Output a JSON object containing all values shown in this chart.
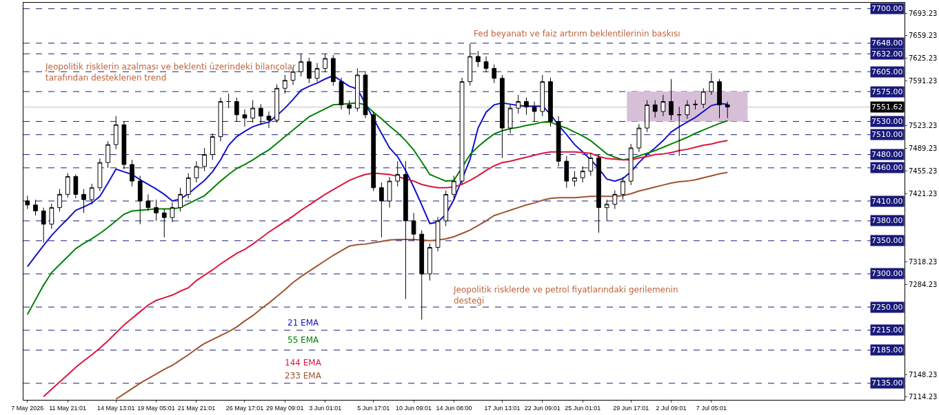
{
  "chart_data": {
    "type": "candlestick",
    "categories": [
      "7 May 2026",
      null,
      null,
      null,
      null,
      "11 May 21:01",
      null,
      null,
      null,
      null,
      null,
      "14 May 13:01",
      null,
      null,
      null,
      null,
      "19 May 05:01",
      null,
      null,
      null,
      null,
      "21 May 21:01",
      null,
      null,
      null,
      null,
      null,
      "26 May 17:01",
      null,
      null,
      null,
      null,
      "29 May 09:01",
      null,
      null,
      null,
      null,
      "3 Jun 01:01",
      null,
      null,
      null,
      null,
      null,
      "5 Jun 17:01",
      null,
      null,
      null,
      null,
      "10 Jun 09:01",
      null,
      null,
      null,
      null,
      "14 Jun 08:00",
      null,
      null,
      null,
      null,
      null,
      "17 Jun 13:01",
      null,
      null,
      null,
      null,
      "22 Jun 09:01",
      null,
      null,
      null,
      null,
      "25 Jun 01:01",
      null,
      null,
      null,
      null,
      null,
      "29 Jun 17:01",
      null,
      null,
      null,
      null,
      "2 Jul 09:01",
      null,
      null,
      null,
      null,
      "7 Jul 05:01",
      null,
      null
    ],
    "ohlc": [
      [
        7410,
        7418,
        7398,
        7404
      ],
      [
        7404,
        7412,
        7388,
        7395
      ],
      [
        7395,
        7400,
        7347,
        7375
      ],
      [
        7375,
        7406,
        7368,
        7400
      ],
      [
        7400,
        7428,
        7394,
        7420
      ],
      [
        7420,
        7452,
        7415,
        7447
      ],
      [
        7447,
        7450,
        7414,
        7420
      ],
      [
        7420,
        7428,
        7392,
        7412
      ],
      [
        7412,
        7436,
        7405,
        7430
      ],
      [
        7430,
        7474,
        7425,
        7468
      ],
      [
        7468,
        7500,
        7460,
        7495
      ],
      [
        7495,
        7538,
        7488,
        7525
      ],
      [
        7525,
        7530,
        7458,
        7465
      ],
      [
        7465,
        7472,
        7432,
        7440
      ],
      [
        7440,
        7448,
        7375,
        7410
      ],
      [
        7410,
        7420,
        7395,
        7400
      ],
      [
        7400,
        7412,
        7380,
        7392
      ],
      [
        7392,
        7398,
        7355,
        7385
      ],
      [
        7385,
        7408,
        7378,
        7400
      ],
      [
        7400,
        7430,
        7394,
        7420
      ],
      [
        7420,
        7452,
        7414,
        7445
      ],
      [
        7445,
        7470,
        7438,
        7462
      ],
      [
        7462,
        7490,
        7455,
        7480
      ],
      [
        7480,
        7512,
        7472,
        7507
      ],
      [
        7507,
        7566,
        7500,
        7560
      ],
      [
        7560,
        7572,
        7550,
        7560
      ],
      [
        7560,
        7566,
        7530,
        7540
      ],
      [
        7540,
        7548,
        7522,
        7535
      ],
      [
        7535,
        7562,
        7528,
        7550
      ],
      [
        7550,
        7556,
        7525,
        7538
      ],
      [
        7538,
        7545,
        7520,
        7532
      ],
      [
        7532,
        7586,
        7528,
        7580
      ],
      [
        7580,
        7600,
        7572,
        7592
      ],
      [
        7592,
        7612,
        7585,
        7605
      ],
      [
        7605,
        7632,
        7598,
        7620
      ],
      [
        7620,
        7626,
        7588,
        7595
      ],
      [
        7595,
        7618,
        7590,
        7610
      ],
      [
        7610,
        7632,
        7604,
        7625
      ],
      [
        7625,
        7630,
        7584,
        7590
      ],
      [
        7590,
        7596,
        7548,
        7555
      ],
      [
        7555,
        7562,
        7540,
        7550
      ],
      [
        7550,
        7610,
        7545,
        7600
      ],
      [
        7600,
        7606,
        7535,
        7540
      ],
      [
        7540,
        7545,
        7425,
        7430
      ],
      [
        7430,
        7438,
        7355,
        7410
      ],
      [
        7410,
        7446,
        7400,
        7440
      ],
      [
        7440,
        7470,
        7432,
        7450
      ],
      [
        7450,
        7470,
        7262,
        7380
      ],
      [
        7380,
        7392,
        7350,
        7360
      ],
      [
        7360,
        7366,
        7231,
        7300
      ],
      [
        7300,
        7346,
        7290,
        7340
      ],
      [
        7340,
        7386,
        7334,
        7380
      ],
      [
        7380,
        7426,
        7372,
        7420
      ],
      [
        7420,
        7448,
        7412,
        7440
      ],
      [
        7440,
        7596,
        7435,
        7590
      ],
      [
        7590,
        7647,
        7584,
        7628
      ],
      [
        7628,
        7636,
        7612,
        7620
      ],
      [
        7620,
        7628,
        7604,
        7610
      ],
      [
        7610,
        7616,
        7588,
        7595
      ],
      [
        7595,
        7600,
        7475,
        7520
      ],
      [
        7520,
        7556,
        7512,
        7550
      ],
      [
        7550,
        7570,
        7542,
        7560
      ],
      [
        7560,
        7566,
        7540,
        7552
      ],
      [
        7552,
        7560,
        7530,
        7545
      ],
      [
        7545,
        7600,
        7538,
        7590
      ],
      [
        7590,
        7596,
        7522,
        7530
      ],
      [
        7530,
        7538,
        7462,
        7470
      ],
      [
        7470,
        7478,
        7430,
        7440
      ],
      [
        7440,
        7455,
        7432,
        7445
      ],
      [
        7445,
        7462,
        7438,
        7455
      ],
      [
        7455,
        7482,
        7448,
        7475
      ],
      [
        7475,
        7480,
        7362,
        7400
      ],
      [
        7400,
        7412,
        7380,
        7405
      ],
      [
        7405,
        7426,
        7398,
        7420
      ],
      [
        7420,
        7446,
        7412,
        7440
      ],
      [
        7440,
        7496,
        7434,
        7490
      ],
      [
        7490,
        7526,
        7484,
        7520
      ],
      [
        7520,
        7562,
        7514,
        7555
      ],
      [
        7555,
        7562,
        7536,
        7545
      ],
      [
        7545,
        7570,
        7538,
        7560
      ],
      [
        7560,
        7594,
        7532,
        7540
      ],
      [
        7540,
        7552,
        7478,
        7540
      ],
      [
        7540,
        7562,
        7534,
        7555
      ],
      [
        7555,
        7562,
        7548,
        7556
      ],
      [
        7556,
        7580,
        7550,
        7575
      ],
      [
        7575,
        7603,
        7570,
        7590
      ],
      [
        7590,
        7594,
        7535,
        7555
      ],
      [
        7555,
        7560,
        7535,
        7551.62
      ]
    ],
    "series": [
      {
        "type": "line",
        "name": "21 EMA",
        "color": "#1010d0",
        "values": [
          7311,
          7327,
          7343,
          7358,
          7371,
          7383,
          7396,
          7401,
          7407,
          7417,
          7437,
          7458,
          7454,
          7450,
          7442,
          7435,
          7428,
          7420,
          7410,
          7413,
          7421,
          7431,
          7441,
          7454,
          7472,
          7494,
          7507,
          7515,
          7522,
          7526,
          7529,
          7539,
          7550,
          7563,
          7577,
          7583,
          7588,
          7594,
          7599,
          7591,
          7583,
          7579,
          null,
          null,
          7512,
          7490,
          7477,
          7456,
          7431,
          7404,
          7376,
          7378,
          7390,
          7412,
          null,
          7473,
          7520,
          7544,
          7555,
          7558,
          7556,
          7554,
          7553,
          7553,
          7553,
          7541,
          7524,
          7510,
          7495,
          7484,
          7472,
          7459,
          7443,
          7440,
          7444,
          7454,
          7468,
          7480,
          7490,
          7501,
          7514,
          7522,
          7529,
          7536,
          7545,
          7554,
          7557,
          7556
        ]
      },
      {
        "type": "line",
        "name": "55 EMA",
        "color": "#008000",
        "values": [
          7239,
          7261,
          7283,
          7302,
          7314,
          7326,
          7338,
          7346,
          7353,
          7361,
          7370,
          7380,
          7390,
          7395,
          7396,
          7397,
          7398,
          7398,
          7398,
          7400,
          7406,
          7412,
          7418,
          7429,
          7440,
          7450,
          7459,
          7465,
          7472,
          7480,
          7487,
          7497,
          7507,
          7517,
          7527,
          7537,
          7543,
          7549,
          7555,
          7556,
          7557,
          7558,
          7555,
          7544,
          7534,
          7523,
          7513,
          7501,
          7487,
          7469,
          7450,
          7445,
          7440,
          7441,
          null,
          7480,
          7492,
          7502,
          7511,
          7516,
          7519,
          7521,
          7524,
          7526,
          7529,
          7529,
          7524,
          7520,
          7514,
          7508,
          7501,
          7491,
          7481,
          7476,
          7472,
          7474,
          7478,
          7482,
          7486,
          7491,
          7496,
          7501,
          7506,
          7512,
          7517,
          7522,
          7527,
          7531
        ]
      },
      {
        "type": "line",
        "name": "144 EMA",
        "color": "#dc143c",
        "values": [
          null,
          null,
          7115,
          7126,
          7137,
          7148,
          7159,
          7169,
          7178,
          7188,
          7199,
          7211,
          7223,
          7233,
          7243,
          7253,
          7260,
          7264,
          7268,
          7274,
          7279,
          7290,
          7298,
          7306,
          7315,
          7323,
          7331,
          7337,
          7345,
          7354,
          7363,
          7371,
          7379,
          7387,
          7396,
          7404,
          7412,
          7420,
          7427,
          7434,
          7441,
          7446,
          7450,
          7452,
          7451,
          7450,
          7447,
          7443,
          7440,
          7435,
          7432,
          7430,
          7430,
          7431,
          7435,
          7441,
          7448,
          7456,
          7463,
          7468,
          7470,
          7473,
          7476,
          7479,
          7482,
          7484,
          7484,
          7484,
          7484,
          7483,
          7482,
          7477,
          7474,
          7473,
          7472,
          7472,
          7475,
          7477,
          7480,
          7481,
          7483,
          7486,
          7488,
          7491,
          7494,
          7496,
          7499,
          7501
        ]
      },
      {
        "type": "line",
        "name": "233 EMA",
        "color": "#a0522d",
        "values": [
          null,
          null,
          null,
          null,
          null,
          null,
          null,
          null,
          null,
          null,
          null,
          7111,
          7119,
          7127,
          7135,
          7142,
          7149,
          7156,
          7162,
          7170,
          7178,
          7187,
          7195,
          7201,
          7207,
          7213,
          7220,
          7229,
          7237,
          7247,
          7256,
          7266,
          7276,
          7287,
          7296,
          7304,
          7312,
          7320,
          7328,
          7335,
          7342,
          7344,
          7345,
          7347,
          7349,
          7351,
          7352,
          7352,
          7352,
          7351,
          7350,
          7351,
          7353,
          7356,
          7361,
          7366,
          7373,
          7380,
          7388,
          7392,
          7396,
          7400,
          7404,
          7407,
          7411,
          7414,
          7415,
          7415,
          7415,
          7416,
          7417,
          7417,
          7417,
          7417,
          7418,
          7421,
          7425,
          7428,
          7431,
          7434,
          7437,
          7439,
          7440,
          7442,
          7445,
          7448,
          7451,
          7453
        ]
      }
    ],
    "ylim": [
      7110,
      7709
    ],
    "yticks": [
      7693.23,
      7659.23,
      7625.23,
      7591.23,
      7523.23,
      7489.23,
      7455.23,
      7421.23,
      7318.23,
      7284.23,
      7148.23,
      7114.23
    ],
    "ref_lines": [
      {
        "axis": "y",
        "value": 7700,
        "label": "7700.00",
        "color": "#1a1a7a",
        "line_style": "dashed"
      },
      {
        "axis": "y",
        "value": 7648,
        "label": "7648.00",
        "color": "#1a1a7a",
        "line_style": "dashed"
      },
      {
        "axis": "y",
        "value": 7632,
        "label": "7632.00",
        "color": "#1a1a7a",
        "line_style": "dashed"
      },
      {
        "axis": "y",
        "value": 7605,
        "label": "7605.00",
        "color": "#1a1a7a",
        "line_style": "dashed"
      },
      {
        "axis": "y",
        "value": 7575,
        "label": "7575.00",
        "color": "#1a1a7a",
        "line_style": "dashed"
      },
      {
        "axis": "y",
        "value": 7551.62,
        "label": "7551.62",
        "color": "#c0c0c0",
        "line_style": "solid"
      },
      {
        "axis": "y",
        "value": 7530,
        "label": "7530.00",
        "color": "#1a1a7a",
        "line_style": "dashed"
      },
      {
        "axis": "y",
        "value": 7510,
        "label": "7510.00",
        "color": "#1a1a7a",
        "line_style": "dashed"
      },
      {
        "axis": "y",
        "value": 7480,
        "label": "7480.00",
        "color": "#1a1a7a",
        "line_style": "dashed"
      },
      {
        "axis": "y",
        "value": 7460,
        "label": "7460.00",
        "color": "#1a1a7a",
        "line_style": "dashed"
      },
      {
        "axis": "y",
        "value": 7410,
        "label": "7410.00",
        "color": "#1a1a7a",
        "line_style": "dashed"
      },
      {
        "axis": "y",
        "value": 7380,
        "label": "7380.00",
        "color": "#1a1a7a",
        "line_style": "dashed"
      },
      {
        "axis": "y",
        "value": 7350,
        "label": "7350.00",
        "color": "#1a1a7a",
        "line_style": "dashed"
      },
      {
        "axis": "y",
        "value": 7300,
        "label": "7300.00",
        "color": "#1a1a7a",
        "line_style": "dashed"
      },
      {
        "axis": "y",
        "value": 7250,
        "label": "7250.00",
        "color": "#1a1a7a",
        "line_style": "dashed"
      },
      {
        "axis": "y",
        "value": 7215,
        "label": "7215.00",
        "color": "#1a1a7a",
        "line_style": "dashed"
      },
      {
        "axis": "y",
        "value": 7185,
        "label": "7185.00",
        "color": "#1a1a7a",
        "line_style": "dashed"
      },
      {
        "axis": "y",
        "value": 7135,
        "label": "7135.00",
        "color": "#1a1a7a",
        "line_style": "dashed"
      }
    ],
    "bands": [
      {
        "axis": "y",
        "from": 7530,
        "to": 7575,
        "color": "#d8bfd8"
      }
    ],
    "annotations": [
      "Jeopolitik risklerin azalması ve beklenti üzerindeki bilançolar\ntarafından desteklenen trend",
      "Fed beyanatı ve faiz artırım beklentilerinin baskısı",
      "Jeopolitik risklerde ve petrol fiyatlarındaki gerilemenin\ndesteği"
    ]
  }
}
